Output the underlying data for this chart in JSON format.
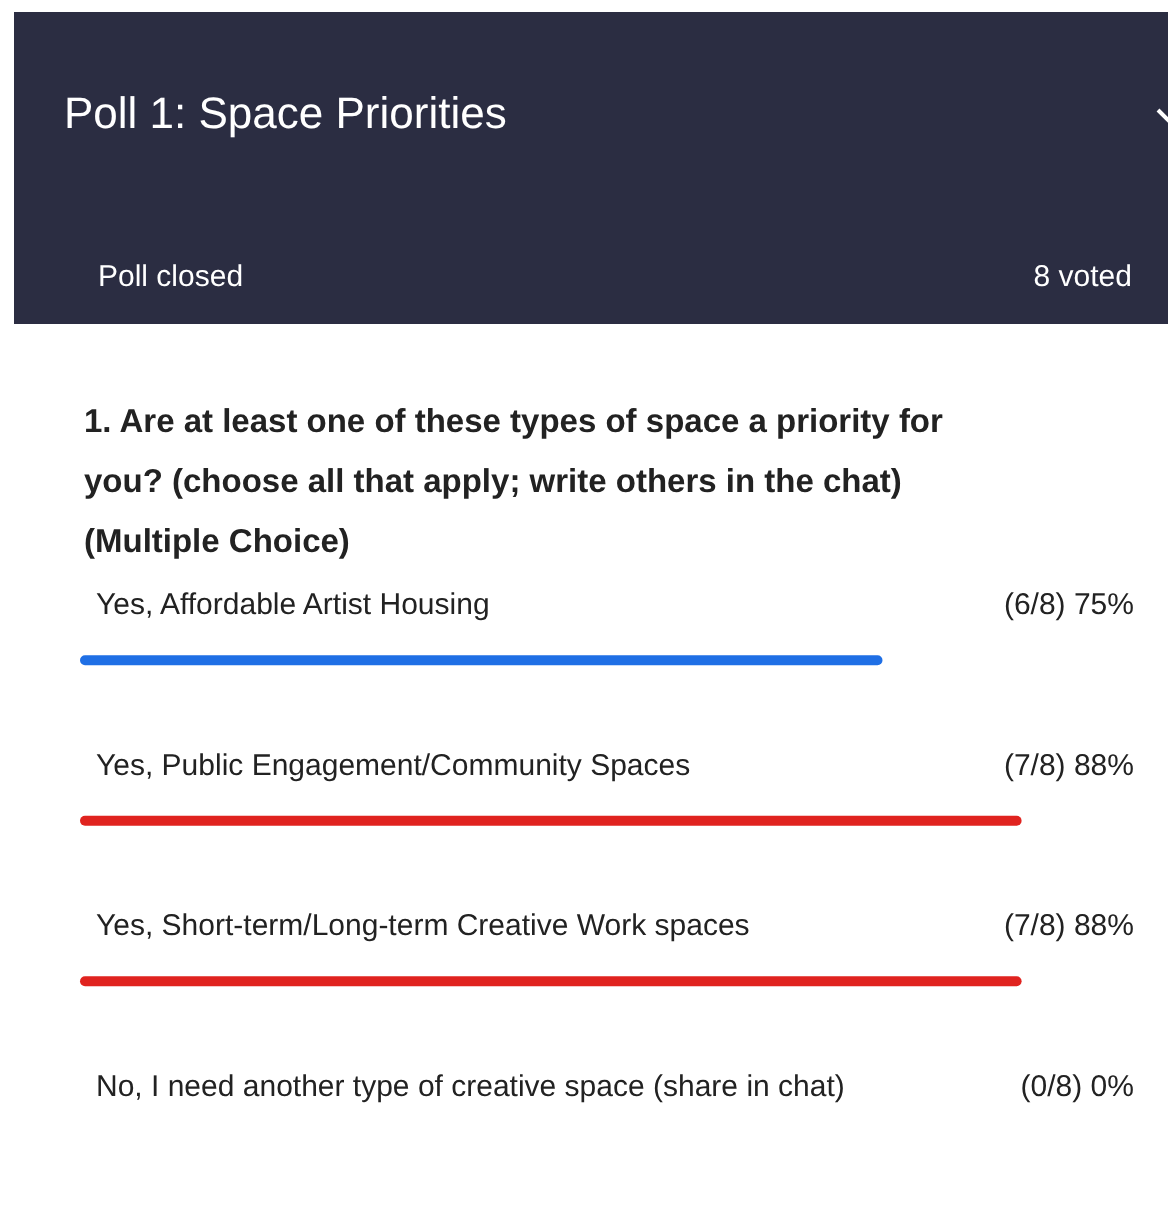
{
  "chart_data": {
    "type": "bar",
    "orientation": "horizontal",
    "title": "Poll 1: Space Priorities",
    "subtitle": "1. Are at least one of these types of space a priority for you? (choose all that apply; write others in the chat)(Multiple Choice)",
    "annotations": [
      "Poll closed",
      "8 voted"
    ],
    "categories": [
      "Yes, Affordable Artist Housing",
      "Yes, Public Engagement/Community Spaces",
      "Yes, Short-term/Long-term Creative Work spaces",
      "No, I need another type of creative space (share in chat)"
    ],
    "values": [
      75,
      88,
      88,
      0
    ],
    "colors": [
      "#1f6fe5",
      "#e0231f",
      "#e0231f",
      "#e0231f"
    ],
    "value_labels": [
      "(6/8) 75%",
      "(7/8) 88%",
      "(7/8) 88%",
      "(0/8) 0%"
    ],
    "tick_labels": false
  }
}
